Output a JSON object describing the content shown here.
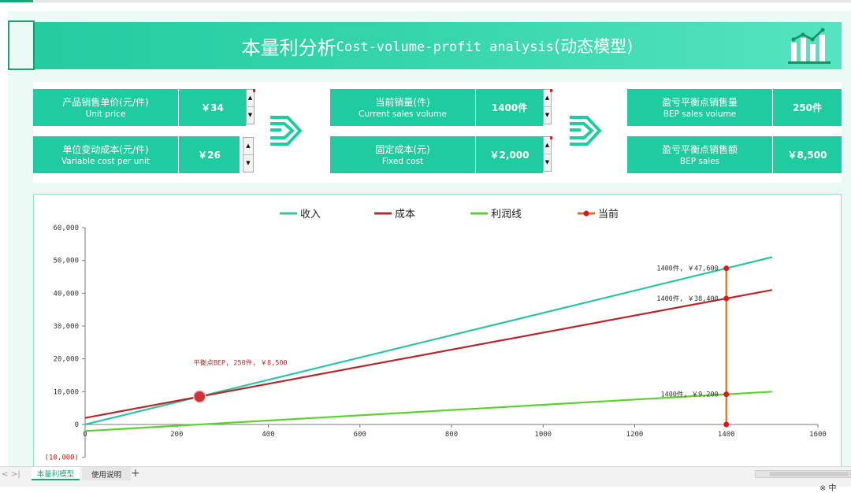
{
  "title": {
    "cn": "本量利分析",
    "en": "Cost-volume-profit analysis",
    "suffix": "(动态模型)"
  },
  "params": {
    "unit_price": {
      "zh": "产品销售单价(元/件)",
      "en": "Unit price",
      "value": "￥34"
    },
    "variable_cost": {
      "zh": "单位变动成本(元/件)",
      "en": "Variable cost per unit",
      "value": "￥26"
    },
    "current_volume": {
      "zh": "当前销量(件)",
      "en": "Current sales volume",
      "value": "1400件"
    },
    "fixed_cost": {
      "zh": "固定成本(元)",
      "en": "Fixed cost",
      "value": "￥2,000"
    },
    "bep_volume": {
      "zh": "盈亏平衡点销售量",
      "en": "BEP sales volume",
      "value": "250件"
    },
    "bep_sales": {
      "zh": "盈亏平衡点销售额",
      "en": "BEP  sales",
      "value": "￥8,500"
    }
  },
  "sheet_tabs": {
    "active": "本量利模型",
    "other": "使用说明",
    "add": "+"
  },
  "nav": {
    "prev": "<",
    "last": ">|"
  },
  "status": "※ 中",
  "colors": {
    "accent": "#1fcca0",
    "revenue": "#2ec4a3",
    "cost": "#b5282e",
    "profit": "#5bd12e",
    "current": "#e0701c",
    "marker": "#e0161e"
  },
  "chart_data": {
    "type": "line",
    "legend": [
      "收入",
      "成本",
      "利润线",
      "当前"
    ],
    "legend_position": "top",
    "x_ticks": [
      "0",
      "200",
      "400",
      "600",
      "800",
      "1000",
      "1200",
      "1400",
      "1600"
    ],
    "y_ticks": [
      "60,000",
      "50,000",
      "40,000",
      "30,000",
      "20,000",
      "10,000",
      "0",
      "(10,000)"
    ],
    "xlim": [
      0,
      1600
    ],
    "ylim": [
      -10000,
      60000
    ],
    "series": [
      {
        "name": "收入",
        "x": [
          0,
          1500
        ],
        "y": [
          0,
          51000
        ]
      },
      {
        "name": "成本",
        "x": [
          0,
          1500
        ],
        "y": [
          2000,
          41000
        ]
      },
      {
        "name": "利润线",
        "x": [
          0,
          1500
        ],
        "y": [
          -2000,
          10000
        ]
      },
      {
        "name": "当前",
        "x": [
          1400,
          1400,
          1400,
          1400
        ],
        "y": [
          0,
          9200,
          38400,
          47600
        ]
      }
    ],
    "bep": {
      "x": 250,
      "y": 8500,
      "label": "平衡点BEP, 250件, ￥8,500"
    },
    "annotations": [
      {
        "x": 1400,
        "y": 47600,
        "label": "1400件, ￥47,600"
      },
      {
        "x": 1400,
        "y": 38400,
        "label": "1400件, ￥38,400"
      },
      {
        "x": 1400,
        "y": 9200,
        "label": "1400件, ￥9,200"
      }
    ],
    "grid": false
  }
}
